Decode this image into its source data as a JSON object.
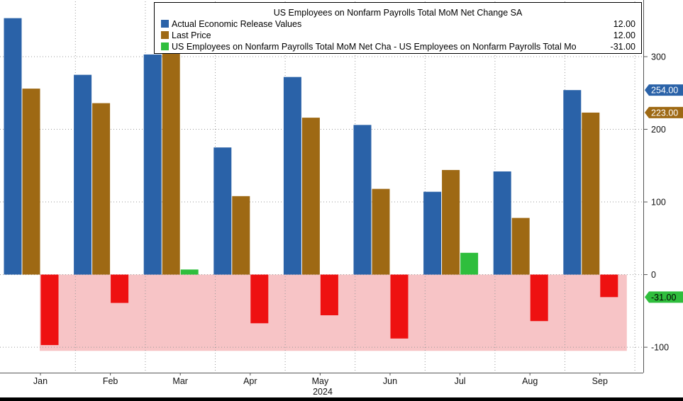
{
  "chart_data": {
    "type": "bar",
    "title": "US Employees on Nonfarm Payrolls Total MoM Net Change SA",
    "xlabel": "2024",
    "categories": [
      "Jan",
      "Feb",
      "Mar",
      "Apr",
      "May",
      "Jun",
      "Jul",
      "Aug",
      "Sep"
    ],
    "ylim": [
      -135,
      378
    ],
    "y_ticks": [
      -100,
      0,
      100,
      200,
      300
    ],
    "grid": true,
    "legend_position": "top",
    "series": [
      {
        "name": "Actual Economic Release Values",
        "legend_value": "12.00",
        "color": "#2a62a8",
        "values": [
          353,
          275,
          303,
          175,
          272,
          206,
          114,
          142,
          254
        ]
      },
      {
        "name": "Last Price",
        "legend_value": "12.00",
        "color": "#9e6914",
        "values": [
          256,
          236,
          310,
          108,
          216,
          118,
          144,
          78,
          223
        ]
      },
      {
        "name": "US Employees on Nonfarm Payrolls Total MoM Net Cha - US Employees on Nonfarm Payrolls Total Mo",
        "legend_value": "-31.00",
        "color_positive": "#2fbe3d",
        "color_negative": "#ee1111",
        "values": [
          -97,
          -39,
          7,
          -67,
          -56,
          -88,
          30,
          -64,
          -31
        ]
      }
    ],
    "last_value_tags": [
      {
        "label": "254.00",
        "value": 254,
        "color": "#2a62a8"
      },
      {
        "label": "223.00",
        "value": 223,
        "color": "#9e6914"
      },
      {
        "label": "-31.00",
        "value": -31,
        "color": "#2fbe3d"
      }
    ],
    "negative_band": {
      "from": 0,
      "to": -105,
      "color": "#f7c4c6"
    }
  }
}
